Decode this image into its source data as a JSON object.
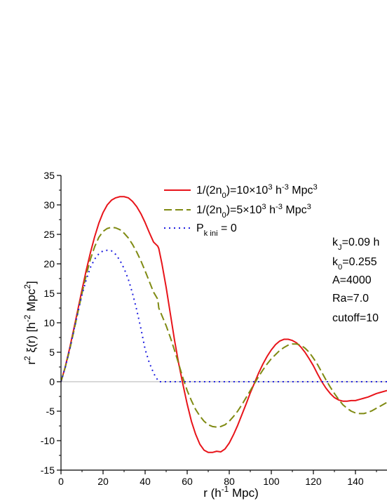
{
  "chart_data": {
    "type": "line",
    "xlabel": {
      "prefix": "r (h",
      "sup": "-1",
      "suffix": " Mpc)"
    },
    "ylabel": {
      "pre": "r",
      "sup1": "2",
      "mid": " ξ(r)  [h",
      "sup2": "-2",
      "mid2": " Mpc",
      "sup3": "2",
      "post": "]"
    },
    "xlim": [
      0,
      155
    ],
    "ylim": [
      -15,
      35
    ],
    "xticks": [
      0,
      20,
      40,
      60,
      80,
      100,
      120,
      140
    ],
    "yticks": [
      -15,
      -10,
      -5,
      0,
      5,
      10,
      15,
      20,
      25,
      30,
      35
    ],
    "x_minor_step": 10,
    "y_minor_step": 2.5,
    "zero_line": true,
    "grid": false,
    "legend_position": "top",
    "series": [
      {
        "color": "#e8141a",
        "style": "solid",
        "x": [
          0,
          2,
          4,
          6,
          8,
          10,
          12,
          14,
          16,
          18,
          20,
          22,
          24,
          26,
          28,
          30,
          32,
          34,
          36,
          38,
          40,
          42,
          44,
          46,
          46.5,
          48,
          50,
          52,
          54,
          56,
          58,
          60,
          62,
          64,
          66,
          68,
          70,
          72,
          74,
          76,
          78,
          80,
          82,
          84,
          86,
          88,
          90,
          92,
          94,
          96,
          98,
          100,
          102,
          104,
          106,
          108,
          110,
          112,
          114,
          116,
          118,
          120,
          122,
          124,
          126,
          128,
          130,
          132,
          134,
          136,
          138,
          140,
          142,
          144,
          146,
          148,
          150,
          152,
          155
        ],
        "y": [
          0,
          2.5,
          5.5,
          8.8,
          12.2,
          15.6,
          18.9,
          21.9,
          24.6,
          26.9,
          28.7,
          30.0,
          30.8,
          31.2,
          31.4,
          31.4,
          31.2,
          30.6,
          29.7,
          28.5,
          27.0,
          25.3,
          23.7,
          23.0,
          22.6,
          20.0,
          16.0,
          11.5,
          7.0,
          3.0,
          -0.5,
          -3.8,
          -6.7,
          -8.9,
          -10.6,
          -11.6,
          -12.0,
          -12.0,
          -11.8,
          -11.9,
          -11.4,
          -10.4,
          -9.0,
          -7.4,
          -5.6,
          -3.8,
          -1.9,
          -0.2,
          1.5,
          3.0,
          4.3,
          5.4,
          6.3,
          6.9,
          7.2,
          7.2,
          7.0,
          6.6,
          5.9,
          5.0,
          3.9,
          2.7,
          1.3,
          0,
          -1.1,
          -2.0,
          -2.7,
          -3.1,
          -3.3,
          -3.3,
          -3.2,
          -3.2,
          -3.0,
          -2.8,
          -2.6,
          -2.3,
          -2.0,
          -1.8,
          -1.5
        ]
      },
      {
        "color": "#7f8a12",
        "style": "dashed",
        "x": [
          0,
          2,
          4,
          6,
          8,
          10,
          12,
          14,
          16,
          18,
          20,
          22,
          24,
          26,
          28,
          30,
          32,
          34,
          36,
          38,
          40,
          42,
          44,
          46,
          46.5,
          48,
          50,
          52,
          54,
          56,
          58,
          60,
          62,
          64,
          66,
          68,
          70,
          72,
          74,
          76,
          78,
          80,
          82,
          84,
          86,
          88,
          90,
          92,
          94,
          96,
          98,
          100,
          102,
          104,
          106,
          108,
          110,
          112,
          114,
          116,
          118,
          120,
          122,
          124,
          126,
          128,
          130,
          132,
          134,
          136,
          138,
          140,
          142,
          144,
          146,
          148,
          150,
          152,
          155
        ],
        "y": [
          0,
          2.4,
          5.2,
          8.4,
          11.7,
          15.0,
          18.1,
          20.8,
          22.9,
          24.5,
          25.5,
          26.0,
          26.2,
          26.1,
          25.8,
          25.2,
          24.4,
          23.3,
          22.0,
          20.5,
          18.8,
          17.0,
          15.2,
          14.0,
          12.5,
          11.2,
          9.5,
          7.5,
          5.3,
          3.0,
          0.6,
          -1.5,
          -3.2,
          -4.7,
          -5.8,
          -6.7,
          -7.3,
          -7.6,
          -7.7,
          -7.6,
          -7.3,
          -6.7,
          -5.9,
          -5.0,
          -3.9,
          -2.7,
          -1.5,
          -0.3,
          0.9,
          2.0,
          3.0,
          3.9,
          4.6,
          5.3,
          5.8,
          6.2,
          6.4,
          6.4,
          6.2,
          5.7,
          5.0,
          4.0,
          2.9,
          1.6,
          0.3,
          -0.9,
          -2.0,
          -3.0,
          -3.9,
          -4.5,
          -5.0,
          -5.3,
          -5.4,
          -5.4,
          -5.2,
          -4.9,
          -4.5,
          -4.1,
          -3.5
        ]
      },
      {
        "color": "#2020e0",
        "style": "dotted",
        "x": [
          0,
          2,
          4,
          6,
          8,
          10,
          12,
          14,
          16,
          18,
          20,
          22,
          24,
          26,
          28,
          30,
          32,
          34,
          36,
          38,
          40,
          42,
          44,
          45,
          46,
          46.5,
          50,
          60,
          80,
          100,
          120,
          140,
          155
        ],
        "y": [
          0,
          2.4,
          5.3,
          8.5,
          11.7,
          14.8,
          17.3,
          19.4,
          20.8,
          21.7,
          22.2,
          22.3,
          22.2,
          21.6,
          20.6,
          19.2,
          17.4,
          15.0,
          12.2,
          9.0,
          5.5,
          3.2,
          1.5,
          0.8,
          0.3,
          0,
          0,
          0,
          0,
          0,
          0,
          0,
          0
        ]
      }
    ],
    "legend": [
      {
        "series": 0,
        "parts": [
          {
            "t": "1/(2n"
          },
          {
            "t": "0",
            "sub": true
          },
          {
            "t": ")=10×10"
          },
          {
            "t": "3",
            "sup": true
          },
          {
            "t": " h"
          },
          {
            "t": "-3",
            "sup": true
          },
          {
            "t": " Mpc"
          },
          {
            "t": "3",
            "sup": true
          }
        ]
      },
      {
        "series": 1,
        "parts": [
          {
            "t": "1/(2n"
          },
          {
            "t": "0",
            "sub": true
          },
          {
            "t": ")=5×10"
          },
          {
            "t": "3",
            "sup": true
          },
          {
            "t": " h"
          },
          {
            "t": "-3",
            "sup": true
          },
          {
            "t": " Mpc"
          },
          {
            "t": "3",
            "sup": true
          }
        ]
      },
      {
        "series": 2,
        "parts": [
          {
            "t": "P"
          },
          {
            "t": "k ini",
            "sub": true
          },
          {
            "t": " = 0"
          }
        ]
      }
    ],
    "annotations": [
      {
        "parts": [
          {
            "t": "k"
          },
          {
            "t": "J",
            "sub": true
          },
          {
            "t": "=0.09 h"
          }
        ]
      },
      {
        "parts": [
          {
            "t": "k"
          },
          {
            "t": "0",
            "sub": true
          },
          {
            "t": "=0.255"
          }
        ]
      },
      {
        "parts": [
          {
            "t": "A=4000"
          }
        ]
      },
      {
        "parts": [
          {
            "t": "Ra=7.0"
          }
        ]
      },
      {
        "parts": [
          {
            "t": "cutoff=10"
          }
        ]
      }
    ]
  }
}
